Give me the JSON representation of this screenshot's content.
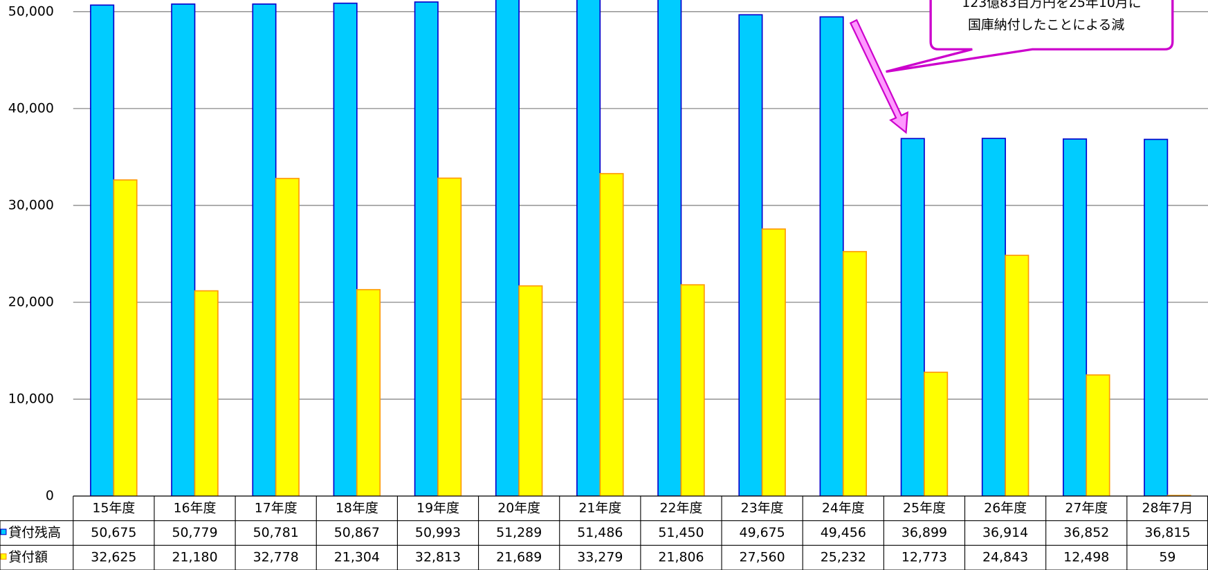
{
  "chart_data": {
    "type": "bar",
    "categories": [
      "15年度",
      "16年度",
      "17年度",
      "18年度",
      "19年度",
      "20年度",
      "21年度",
      "22年度",
      "23年度",
      "24年度",
      "25年度",
      "26年度",
      "27年度",
      "28年7月"
    ],
    "series": [
      {
        "name": "貸付残高",
        "color": "#00ccff",
        "edgecolor": "#0000cc",
        "values": [
          50675,
          50779,
          50781,
          50867,
          50993,
          51289,
          51486,
          51450,
          49675,
          49456,
          36899,
          36914,
          36852,
          36815
        ],
        "value_labels": [
          "50,675",
          "50,779",
          "50,781",
          "50,867",
          "50,993",
          "51,289",
          "51,486",
          "51,450",
          "49,675",
          "49,456",
          "36,899",
          "36,914",
          "36,852",
          "36,815"
        ]
      },
      {
        "name": "貸付額",
        "color": "#ffff00",
        "edgecolor": "#ff9900",
        "values": [
          32625,
          21180,
          32778,
          21304,
          32813,
          21689,
          33279,
          21806,
          27560,
          25232,
          12773,
          24843,
          12498,
          59
        ],
        "value_labels": [
          "32,625",
          "21,180",
          "32,778",
          "21,304",
          "32,813",
          "21,689",
          "33,279",
          "21,806",
          "27,560",
          "25,232",
          "12,773",
          "24,843",
          "12,498",
          "59"
        ]
      }
    ],
    "ylim": [
      0,
      51200
    ],
    "yticks": [
      0,
      {
        "value": 10000,
        "label": "10,000"
      },
      {
        "value": 20000,
        "label": "20,000"
      },
      {
        "value": 30000,
        "label": "30,000"
      },
      {
        "value": 40000,
        "label": "40,000"
      },
      {
        "value": 50000,
        "label": "50,000"
      }
    ],
    "grid": true,
    "annotations": [
      "123億83百万円を25年10月に",
      "国庫納付したことによる減"
    ]
  }
}
